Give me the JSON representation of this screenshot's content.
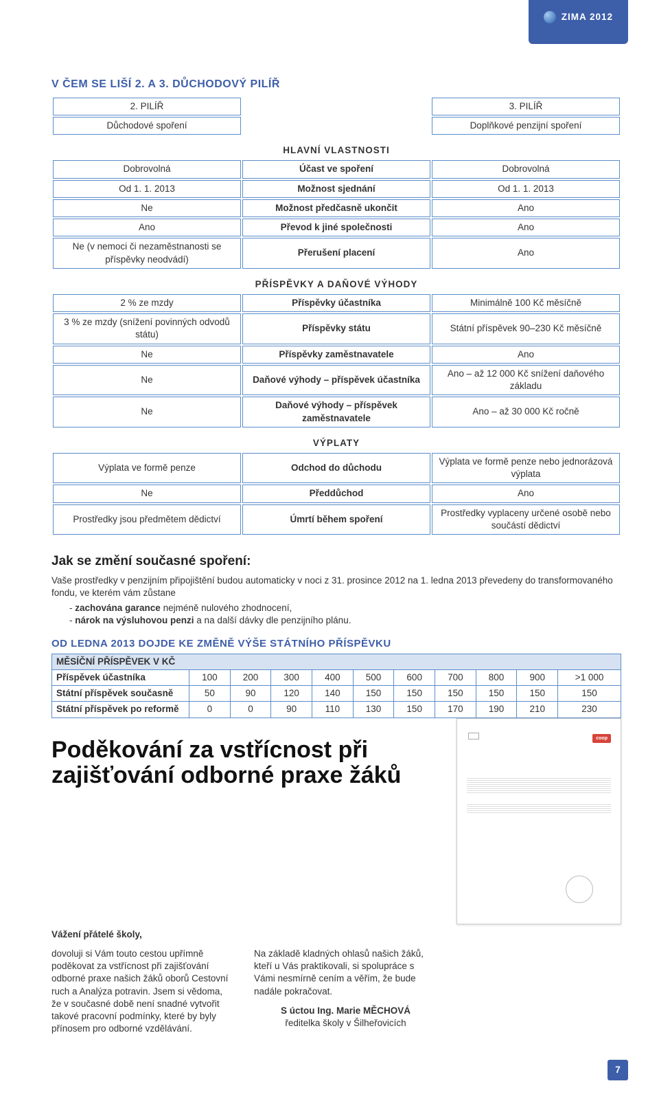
{
  "tab": {
    "label": "ZIMA 2012"
  },
  "section1_title": "V ČEM SE LIŠÍ 2. A 3. DŮCHODOVÝ PILÍŘ",
  "pillar_header": {
    "left": "2. PILÍŘ",
    "right": "3. PILÍŘ",
    "left_sub": "Důchodové spoření",
    "right_sub": "Doplňkové penzijní spoření"
  },
  "sections": {
    "main": {
      "title": "HLAVNÍ VLASTNOSTI",
      "rows": [
        {
          "l": "Dobrovolná",
          "m": "Účast ve spoření",
          "r": "Dobrovolná"
        },
        {
          "l": "Od 1. 1. 2013",
          "m": "Možnost sjednání",
          "r": "Od 1. 1. 2013"
        },
        {
          "l": "Ne",
          "m": "Možnost předčasně ukončit",
          "r": "Ano"
        },
        {
          "l": "Ano",
          "m": "Převod k jiné společnosti",
          "r": "Ano"
        },
        {
          "l": "Ne (v nemoci či nezaměstnanosti se příspěvky neodvádí)",
          "m": "Přerušení placení",
          "r": "Ano"
        }
      ]
    },
    "tax": {
      "title": "PŘÍSPĚVKY A DAŇOVÉ VÝHODY",
      "rows": [
        {
          "l": "2 % ze mzdy",
          "m": "Příspěvky účastníka",
          "r": "Minimálně 100 Kč měsíčně"
        },
        {
          "l": "3 % ze mzdy (snížení povinných odvodů státu)",
          "m": "Příspěvky státu",
          "r": "Státní příspěvek 90–230 Kč měsíčně"
        },
        {
          "l": "Ne",
          "m": "Příspěvky zaměstnavatele",
          "r": "Ano"
        },
        {
          "l": "Ne",
          "m": "Daňové výhody – příspěvek účastníka",
          "r": "Ano – až 12 000 Kč snížení daňového základu"
        },
        {
          "l": "Ne",
          "m": "Daňové výhody – příspěvek zaměstnavatele",
          "r": "Ano – až 30 000 Kč ročně"
        }
      ]
    },
    "pay": {
      "title": "VÝPLATY",
      "rows": [
        {
          "l": "Výplata ve formě penze",
          "m": "Odchod do důchodu",
          "r": "Výplata ve formě penze nebo jednorázová výplata"
        },
        {
          "l": "Ne",
          "m": "Předdůchod",
          "r": "Ano"
        },
        {
          "l": "Prostředky jsou předmětem dědictví",
          "m": "Úmrtí během spoření",
          "r": "Prostředky vyplaceny určené osobě nebo součástí dědictví"
        }
      ]
    }
  },
  "change_heading": "Jak se změní současné spoření:",
  "change_body": "Vaše prostředky v penzijním připojištění budou automaticky v noci z 31. prosince 2012 na 1. ledna 2013 převedeny do transformovaného fondu, ve kterém vám zůstane",
  "change_bullets": [
    {
      "bold": "zachována garance",
      "rest": " nejméně nulového zhodnocení,"
    },
    {
      "bold": "nárok na výsluhovou penzi",
      "rest": " a na další dávky dle penzijního plánu."
    }
  ],
  "contrib_heading": "OD LEDNA 2013 DOJDE KE ZMĚNĚ VÝŠE STÁTNÍHO PŘÍSPĚVKU",
  "contrib_table": {
    "header_label": "MĚSÍČNÍ PŘÍSPĚVEK V KČ",
    "columns": [
      "100",
      "200",
      "300",
      "400",
      "500",
      "600",
      "700",
      "800",
      "900",
      ">1 000"
    ],
    "rows": [
      {
        "label": "Příspěvek účastníka",
        "vals": [
          "100",
          "200",
          "300",
          "400",
          "500",
          "600",
          "700",
          "800",
          "900",
          ">1 000"
        ]
      },
      {
        "label": "Státní příspěvek současně",
        "vals": [
          "50",
          "90",
          "120",
          "140",
          "150",
          "150",
          "150",
          "150",
          "150",
          "150"
        ]
      },
      {
        "label": "Státní příspěvek po reformě",
        "vals": [
          "0",
          "0",
          "90",
          "110",
          "130",
          "150",
          "170",
          "190",
          "210",
          "230"
        ]
      }
    ]
  },
  "thanks_heading": "Poděkování za vstřícnost při zajišťování odborné praxe žáků",
  "greeting": "Vážení přátelé školy,",
  "col1": "dovoluji si Vám touto cestou upřímně poděkovat za vstřícnost při zajišťování odborné praxe našich žáků oborů Cestovní ruch a Analýza potravin. Jsem si vědoma, že v současné době není snadné vytvořit takové pracovní podmínky, které by byly přínosem pro odborné vzdělávání.",
  "col2": "Na základě kladných ohlasů našich žáků, kteří u Vás praktikovali, si spolupráce s Vámi nesmírně cením a věřím, že bude nadále pokračovat.",
  "sign1": "S úctou Ing. Marie MĚCHOVÁ",
  "sign2": "ředitelka školy v Šilheřovicích",
  "letter_badge": "coop",
  "page_num": "7",
  "colors": {
    "brand_blue": "#3d5ea8",
    "cell_border": "#5a8cc8",
    "header_fill": "#d6e2f2",
    "coop_badge": "#d6443a"
  }
}
